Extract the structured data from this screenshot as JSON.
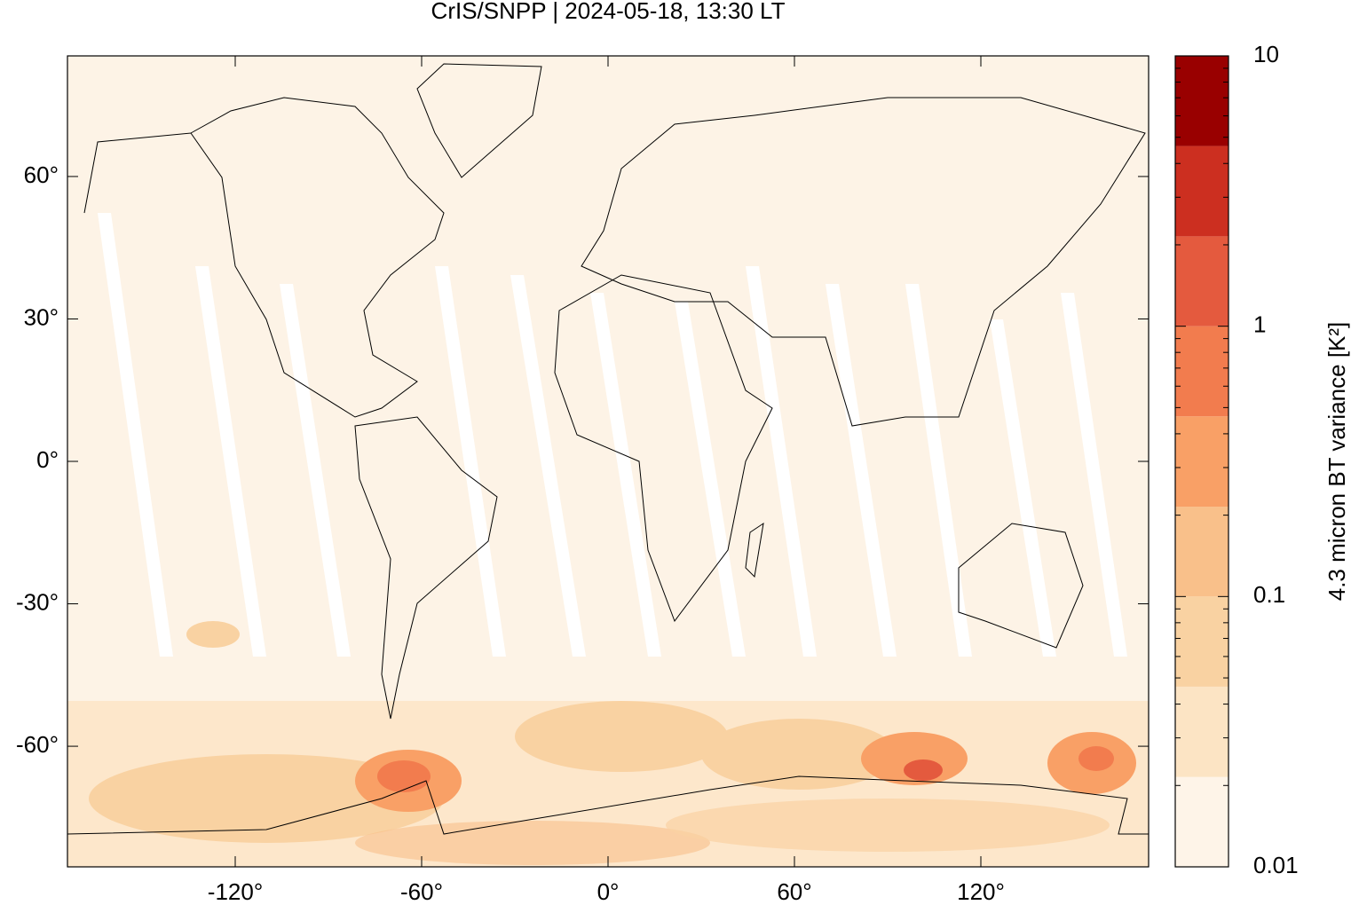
{
  "chart_data": {
    "type": "map",
    "title": "CrIS/SNPP | 2024-05-18, 13:30 LT",
    "xlim": [
      -174,
      174
    ],
    "ylim": [
      -85.4,
      85.4
    ],
    "xticks": [
      {
        "value": -120,
        "label": "-120°"
      },
      {
        "value": -60,
        "label": "-60°"
      },
      {
        "value": 0,
        "label": "0°"
      },
      {
        "value": 60,
        "label": "60°"
      },
      {
        "value": 120,
        "label": "120°"
      }
    ],
    "yticks": [
      {
        "value": 60,
        "label": "60°"
      },
      {
        "value": 30,
        "label": "30°"
      },
      {
        "value": 0,
        "label": "0°"
      },
      {
        "value": -30,
        "label": "-30°"
      },
      {
        "value": -60,
        "label": "-60°"
      }
    ],
    "colorbar": {
      "label": "4.3 micron BT variance [K²]",
      "log": true,
      "lim": [
        0.01,
        10
      ],
      "ticks": [
        10,
        1,
        0.1,
        0.01
      ],
      "levels": [
        0.01,
        0.0215,
        0.0464,
        0.1,
        0.215,
        0.464,
        1,
        2.15,
        4.64,
        10
      ],
      "colors": [
        "#fef4e8",
        "#fce4c4",
        "#f9d2a2",
        "#f9c08a",
        "#f9a066",
        "#f27c4e",
        "#e45a3e",
        "#cc2f20",
        "#990000"
      ]
    }
  }
}
